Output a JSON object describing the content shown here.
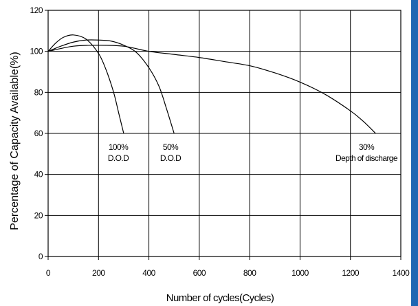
{
  "colors": {
    "border_accent": "#1f66b3",
    "line": "#000000",
    "grid": "#000000"
  },
  "chart_data": {
    "type": "line",
    "title": "",
    "xlabel": "Number of cycles(Cycles)",
    "ylabel": "Percentage of Capacity Available(%)",
    "xlim": [
      0,
      1400
    ],
    "ylim": [
      0,
      120
    ],
    "x_ticks": [
      0,
      200,
      400,
      600,
      800,
      1000,
      1200,
      1400
    ],
    "y_ticks": [
      0,
      20,
      40,
      60,
      80,
      100,
      120
    ],
    "grid": true,
    "series": [
      {
        "name_lines": [
          "100%",
          "D.O.D"
        ],
        "x": [
          0,
          30,
          60,
          100,
          150,
          200,
          230,
          260,
          280,
          300
        ],
        "y": [
          100,
          104,
          106.8,
          108,
          106,
          99,
          91,
          80,
          70,
          60
        ]
      },
      {
        "name_lines": [
          "50%",
          "D.O.D"
        ],
        "x": [
          0,
          50,
          100,
          150,
          200,
          250,
          300,
          350,
          400,
          440,
          470,
          500
        ],
        "y": [
          100,
          102.5,
          104.5,
          105.5,
          105.5,
          105,
          103,
          99.5,
          92,
          83,
          72,
          60
        ]
      },
      {
        "name_lines": [
          "30%",
          "Depth of discharge"
        ],
        "x": [
          0,
          100,
          200,
          300,
          400,
          500,
          600,
          700,
          800,
          900,
          1000,
          1100,
          1200,
          1250,
          1300
        ],
        "y": [
          100,
          102.5,
          103,
          102.5,
          100,
          98.5,
          97,
          95,
          93,
          89.5,
          85,
          79,
          71,
          66,
          60
        ]
      }
    ]
  }
}
